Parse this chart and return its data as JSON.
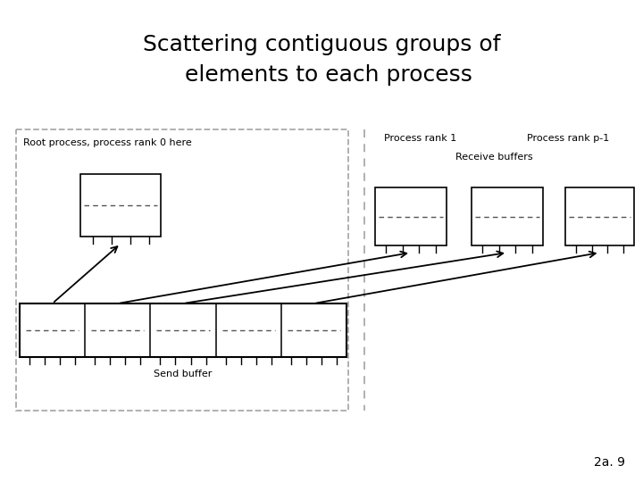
{
  "title_line1": "Scattering contiguous groups of",
  "title_line2": "  elements to each process",
  "title_fontsize": 18,
  "background_color": "#ffffff",
  "slide_number": "2a. 9",
  "root_box_label": "Root process, process rank 0 here",
  "rank1_label": "Process rank 1",
  "rankp1_label": "Process rank p-1",
  "receive_buffers_label": "Receive buffers",
  "send_buffer_label": "Send buffer",
  "dashed_color": "#aaaaaa",
  "box_color": "#000000",
  "arrow_color": "#000000"
}
